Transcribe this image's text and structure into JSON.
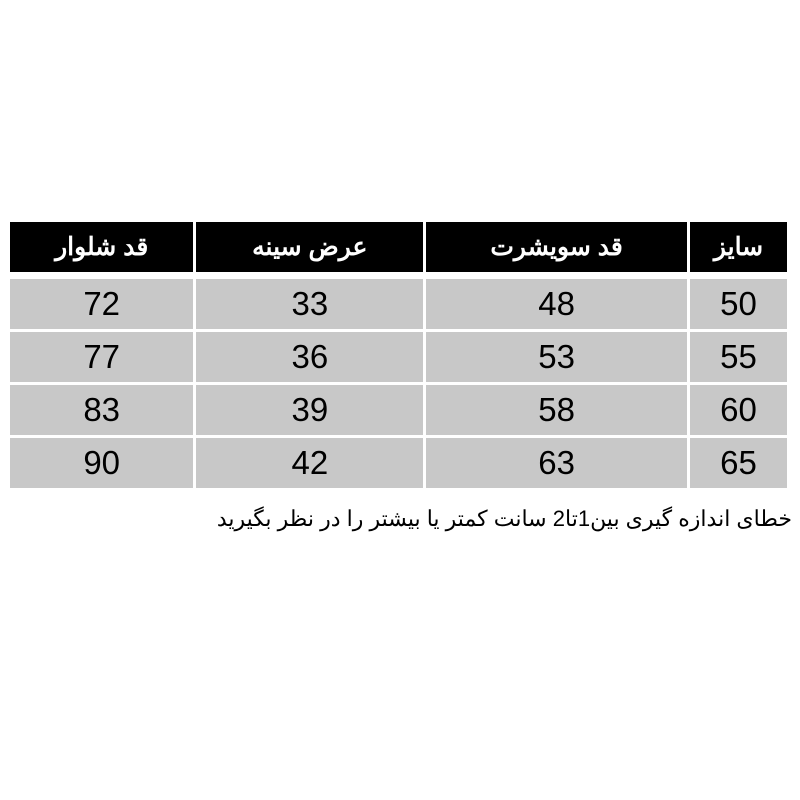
{
  "table": {
    "headers": [
      "سایز",
      "قد سویشرت",
      "عرض سینه",
      "قد شلوار"
    ],
    "rows": [
      [
        "50",
        "48",
        "33",
        "72"
      ],
      [
        "55",
        "53",
        "36",
        "77"
      ],
      [
        "60",
        "58",
        "39",
        "83"
      ],
      [
        "65",
        "63",
        "42",
        "90"
      ]
    ]
  },
  "note": "خطای اندازه گیری بین1تا2 سانت کمتر یا بیشتر را در نظر بگیرید",
  "colors": {
    "header_bg": "#000000",
    "cell_bg": "#c8c8c8"
  }
}
